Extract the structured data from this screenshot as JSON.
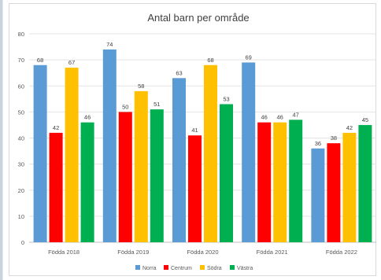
{
  "chart_data": {
    "type": "bar",
    "title": "Antal barn per område",
    "categories": [
      "Födda 2018",
      "Födda 2019",
      "Födda 2020",
      "Födda 2021",
      "Födda 2022"
    ],
    "series": [
      {
        "name": "Norra",
        "color": "#5b9bd5",
        "values": [
          68,
          74,
          63,
          69,
          36
        ]
      },
      {
        "name": "Centrum",
        "color": "#ff0000",
        "values": [
          42,
          50,
          41,
          46,
          38
        ]
      },
      {
        "name": "Södra",
        "color": "#ffc000",
        "values": [
          67,
          58,
          68,
          46,
          42
        ]
      },
      {
        "name": "Västra",
        "color": "#00b050",
        "values": [
          46,
          51,
          53,
          47,
          45
        ]
      }
    ],
    "ylim": [
      0,
      80
    ],
    "yticks": [
      0,
      10,
      20,
      30,
      40,
      50,
      60,
      70,
      80
    ],
    "grid": true,
    "legend_position": "bottom",
    "data_labels": true
  }
}
